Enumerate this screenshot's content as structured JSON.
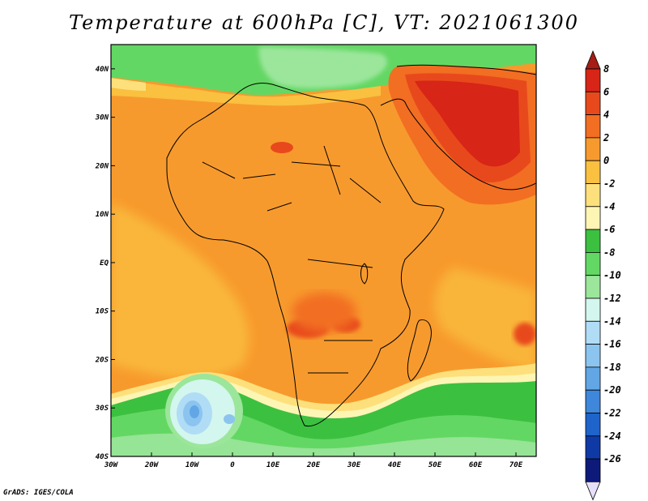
{
  "title": "Temperature at 600hPa [C], VT: 2021061300",
  "credit": "GrADS: IGES/COLA",
  "map": {
    "region": "Africa",
    "projection": "latlon",
    "lon_range": [
      -30,
      75
    ],
    "lat_range": [
      -40,
      45
    ],
    "lon_ticks": [
      "30W",
      "20W",
      "10W",
      "0",
      "10E",
      "20E",
      "30E",
      "40E",
      "50E",
      "60E",
      "70E"
    ],
    "lat_ticks": [
      "40N",
      "30N",
      "20N",
      "10N",
      "EQ",
      "10S",
      "20S",
      "30S",
      "40S"
    ]
  },
  "colorbar": {
    "labels": [
      "8",
      "6",
      "4",
      "2",
      "0",
      "-2",
      "-4",
      "-6",
      "-8",
      "-10",
      "-12",
      "-14",
      "-16",
      "-18",
      "-20",
      "-22",
      "-24",
      "-26"
    ],
    "colors": [
      "#d72517",
      "#e8491c",
      "#f26e22",
      "#f79a2d",
      "#fac040",
      "#fde07b",
      "#fdf5b4",
      "#3cc040",
      "#63d763",
      "#9be69b",
      "#d3f6ee",
      "#b0dcf6",
      "#8bc4ef",
      "#62a6e6",
      "#3e87db",
      "#1e64cb",
      "#0f3aa6",
      "#0d1a7a"
    ],
    "top_arrow_color": "#a51d14",
    "bottom_arrow_color": "#e6e0fb"
  }
}
